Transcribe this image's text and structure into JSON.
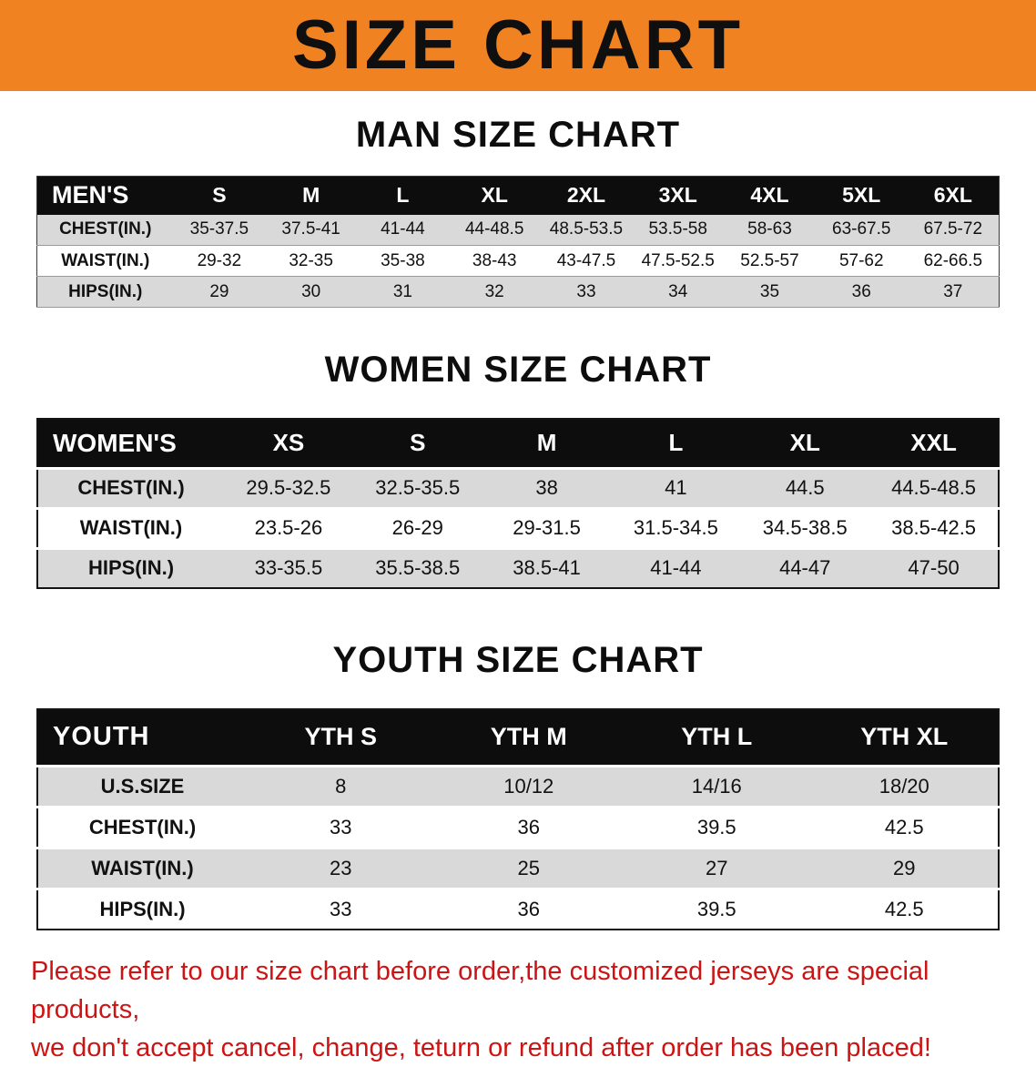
{
  "colors": {
    "banner_bg": "#f18221",
    "table_header_bg": "#0d0d0d",
    "row_stripe": "#d9d9d9",
    "note_red": "#cd1414"
  },
  "banner": {
    "title": "SIZE CHART"
  },
  "sections": [
    {
      "heading": "MAN SIZE CHART",
      "table": {
        "header_label": "MEN'S",
        "columns": [
          "S",
          "M",
          "L",
          "XL",
          "2XL",
          "3XL",
          "4XL",
          "5XL",
          "6XL"
        ],
        "rows": [
          {
            "label": "CHEST(IN.)",
            "values": [
              "35-37.5",
              "37.5-41",
              "41-44",
              "44-48.5",
              "48.5-53.5",
              "53.5-58",
              "58-63",
              "63-67.5",
              "67.5-72"
            ]
          },
          {
            "label": "WAIST(IN.)",
            "values": [
              "29-32",
              "32-35",
              "35-38",
              "38-43",
              "43-47.5",
              "47.5-52.5",
              "52.5-57",
              "57-62",
              "62-66.5"
            ]
          },
          {
            "label": "HIPS(IN.)",
            "values": [
              "29",
              "30",
              "31",
              "32",
              "33",
              "34",
              "35",
              "36",
              "37"
            ]
          }
        ]
      }
    },
    {
      "heading": "WOMEN SIZE CHART",
      "table": {
        "header_label": "WOMEN'S",
        "columns": [
          "XS",
          "S",
          "M",
          "L",
          "XL",
          "XXL"
        ],
        "rows": [
          {
            "label": "CHEST(IN.)",
            "values": [
              "29.5-32.5",
              "32.5-35.5",
              "38",
              "41",
              "44.5",
              "44.5-48.5"
            ]
          },
          {
            "label": "WAIST(IN.)",
            "values": [
              "23.5-26",
              "26-29",
              "29-31.5",
              "31.5-34.5",
              "34.5-38.5",
              "38.5-42.5"
            ]
          },
          {
            "label": "HIPS(IN.)",
            "values": [
              "33-35.5",
              "35.5-38.5",
              "38.5-41",
              "41-44",
              "44-47",
              "47-50"
            ]
          }
        ]
      }
    },
    {
      "heading": "YOUTH SIZE CHART",
      "table": {
        "header_label": "YOUTH",
        "columns": [
          "YTH S",
          "YTH M",
          "YTH L",
          "YTH XL"
        ],
        "rows": [
          {
            "label": "U.S.SIZE",
            "values": [
              "8",
              "10/12",
              "14/16",
              "18/20"
            ]
          },
          {
            "label": "CHEST(IN.)",
            "values": [
              "33",
              "36",
              "39.5",
              "42.5"
            ]
          },
          {
            "label": "WAIST(IN.)",
            "values": [
              "23",
              "25",
              "27",
              "29"
            ]
          },
          {
            "label": "HIPS(IN.)",
            "values": [
              "33",
              "36",
              "39.5",
              "42.5"
            ]
          }
        ]
      }
    }
  ],
  "note": {
    "line1": "Please refer to our size chart before order,the customized jerseys are special products,",
    "line2": "we don't accept cancel, change, teturn or refund after order has been placed!"
  }
}
